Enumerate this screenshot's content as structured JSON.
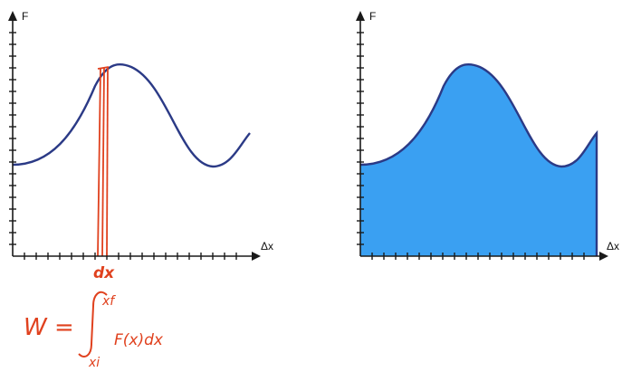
{
  "colors": {
    "axis": "#1a1a1a",
    "curve": "#2b3a86",
    "area_fill": "#3aa0f2",
    "annotation": "#e0411e"
  },
  "left_graph": {
    "y_axis_label": "F",
    "x_axis_label": "Δx",
    "strip_label": "dx"
  },
  "right_graph": {
    "y_axis_label": "F",
    "x_axis_label": "Δx"
  },
  "formula": {
    "lhs": "W =",
    "upper_limit": "xf",
    "lower_limit": "xi",
    "integrand": "F(x)dx"
  }
}
